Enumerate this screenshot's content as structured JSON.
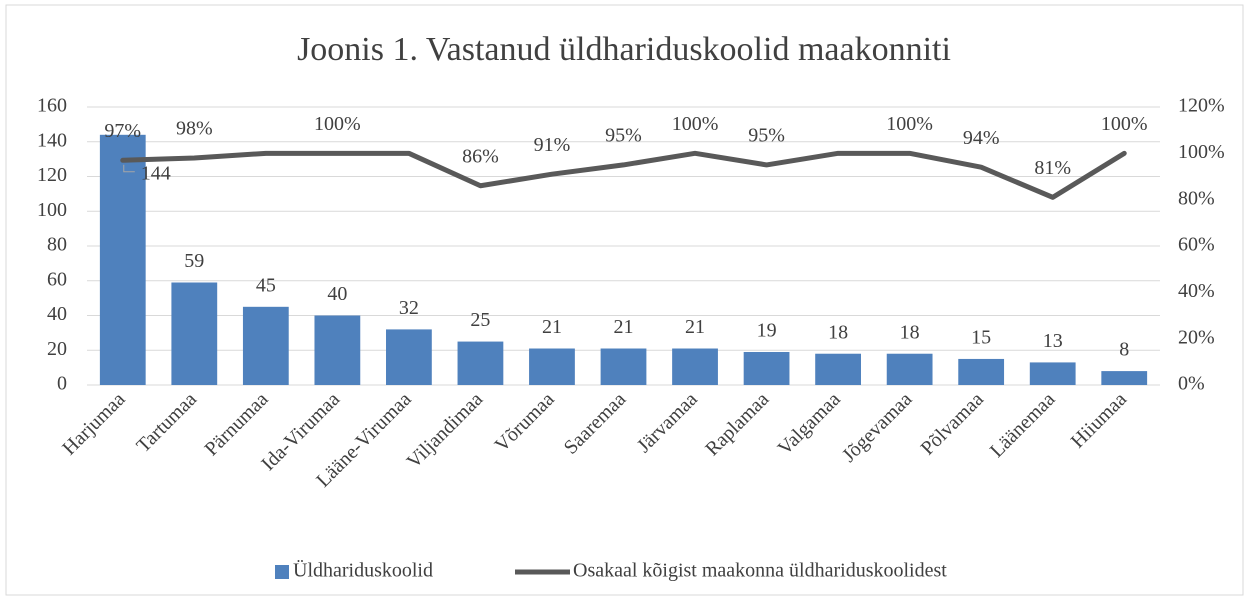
{
  "chart_data": {
    "type": "bar_line",
    "title": "Joonis 1. Vastanud üldhariduskoolid maakonniti",
    "categories": [
      "Harjumaa",
      "Tartumaa",
      "Pärnumaa",
      "Ida-Virumaa",
      "Lääne-Virumaa",
      "Viljandimaa",
      "Võrumaa",
      "Saaremaa",
      "Järvamaa",
      "Raplamaa",
      "Valgamaa",
      "Jõgevamaa",
      "Põlvamaa",
      "Läänemaa",
      "Hiiumaa"
    ],
    "series": [
      {
        "name": "Üldhariduskoolid",
        "type": "bar",
        "color": "#4f81bd",
        "values": [
          144,
          59,
          45,
          40,
          32,
          25,
          21,
          21,
          21,
          19,
          18,
          18,
          15,
          13,
          8
        ]
      },
      {
        "name": "Osakaal kõigist maakonna üldhariduskoolidest",
        "type": "line",
        "axis": "y2",
        "color": "#595959",
        "values": [
          97,
          98,
          100,
          100,
          100,
          86,
          91,
          95,
          100,
          95,
          100,
          100,
          94,
          81,
          100
        ],
        "value_labels": [
          "97%",
          "98%",
          null,
          "100%",
          null,
          "86%",
          "91%",
          "95%",
          "100%",
          "95%",
          null,
          "100%",
          "94%",
          "81%",
          "100%"
        ]
      }
    ],
    "ylim": [
      0,
      160
    ],
    "yticks": [
      0,
      20,
      40,
      60,
      80,
      100,
      120,
      140,
      160
    ],
    "y2lim": [
      0,
      120
    ],
    "y2ticks": [
      {
        "value": 0,
        "label": "0%"
      },
      {
        "value": 20,
        "label": "20%"
      },
      {
        "value": 40,
        "label": "40%"
      },
      {
        "value": 60,
        "label": "60%"
      },
      {
        "value": 80,
        "label": "80%"
      },
      {
        "value": 100,
        "label": "100%"
      },
      {
        "value": 120,
        "label": "120%"
      }
    ],
    "grid": true,
    "legend": "bottom"
  }
}
